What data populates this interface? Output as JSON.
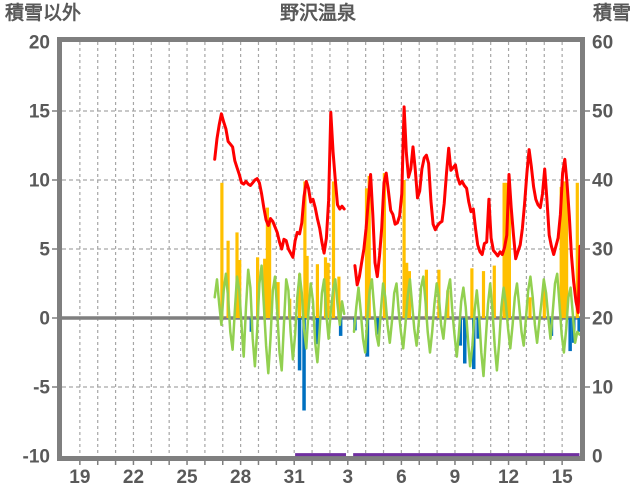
{
  "header": {
    "left_axis_label": "積雪以外",
    "title": "野沢温泉",
    "right_axis_label": "積雪"
  },
  "colors": {
    "red": "#FF0000",
    "green": "#92D050",
    "orange": "#FFC000",
    "blue": "#0070C0",
    "purple": "#7030A0",
    "frame": "#7F7F7F",
    "grid": "#A6A6A6",
    "text": "#595959"
  },
  "chart_data": {
    "type": "line",
    "title": "野沢温泉",
    "grid": true,
    "x_axis": {
      "unit": "day",
      "range_days": 29,
      "gridline_every": 1,
      "tick_positions": [
        1,
        4,
        7,
        10,
        13,
        16,
        19,
        22,
        25,
        28
      ],
      "tick_labels": [
        "19",
        "22",
        "25",
        "28",
        "31",
        "3",
        "6",
        "9",
        "12",
        "15"
      ]
    },
    "left_axis": {
      "label": "積雪以外",
      "min": -10,
      "max": 20,
      "ticks": [
        20,
        15,
        10,
        5,
        0,
        -5,
        -10
      ]
    },
    "right_axis": {
      "label": "積雪",
      "min": 0,
      "max": 60,
      "ticks": [
        60,
        50,
        40,
        30,
        20,
        10,
        0
      ]
    },
    "series": [
      {
        "name": "orange-bars",
        "kind": "bar",
        "color_key": "orange",
        "bar_width": 3.2,
        "points": [
          [
            8.95,
            9.8
          ],
          [
            9.3,
            5.6
          ],
          [
            9.8,
            6.2
          ],
          [
            9.95,
            4.2
          ],
          [
            10.95,
            4.4
          ],
          [
            11.35,
            4.3
          ],
          [
            11.5,
            8.0
          ],
          [
            11.62,
            7.2
          ],
          [
            12.1,
            2.6
          ],
          [
            12.75,
            1.4
          ],
          [
            13.3,
            3.2
          ],
          [
            13.6,
            9.9
          ],
          [
            13.72,
            4.5
          ],
          [
            14.3,
            3.9
          ],
          [
            14.75,
            4.4
          ],
          [
            14.9,
            4.0
          ],
          [
            15.2,
            9.9
          ],
          [
            15.5,
            3.0
          ],
          [
            17.05,
            9.4
          ],
          [
            17.2,
            10.3
          ],
          [
            18.05,
            10.5
          ],
          [
            19.15,
            10.0
          ],
          [
            19.3,
            4.0
          ],
          [
            19.45,
            3.4
          ],
          [
            20.4,
            3.5
          ],
          [
            21.1,
            3.5
          ],
          [
            21.6,
            2.0
          ],
          [
            22.95,
            3.6
          ],
          [
            23.6,
            3.4
          ],
          [
            24.2,
            3.8
          ],
          [
            24.75,
            9.8
          ],
          [
            24.9,
            9.8
          ],
          [
            25.05,
            9.8
          ],
          [
            26.2,
            1.5
          ],
          [
            27.0,
            2.3
          ],
          [
            27.95,
            9.5
          ],
          [
            28.1,
            9.9
          ],
          [
            28.25,
            9.7
          ],
          [
            28.85,
            9.8
          ]
        ]
      },
      {
        "name": "blue-bars",
        "kind": "bar",
        "color_key": "blue",
        "bar_width": 3.5,
        "points": [
          [
            10.6,
            -1.0
          ],
          [
            13.3,
            -3.8
          ],
          [
            13.55,
            -6.7
          ],
          [
            14.3,
            -1.9
          ],
          [
            15.6,
            -1.3
          ],
          [
            16.4,
            -0.9
          ],
          [
            17.1,
            -2.8
          ],
          [
            17.65,
            -1.2
          ],
          [
            22.3,
            -2.0
          ],
          [
            22.55,
            -3.3
          ],
          [
            23.05,
            -3.7
          ],
          [
            23.3,
            -1.5
          ],
          [
            27.4,
            -1.3
          ],
          [
            28.45,
            -2.4
          ],
          [
            28.65,
            -1.8
          ],
          [
            28.95,
            -1.0
          ]
        ]
      },
      {
        "name": "green-line",
        "kind": "line",
        "color_key": "green",
        "stroke_width": 2.5,
        "segments": [
          {
            "start": 8.55,
            "step": 0.125,
            "values": [
              1.5,
              2.8,
              1.0,
              -0.5,
              2.0,
              3.2,
              1.5,
              -1.0,
              -2.3,
              0.5,
              3.0,
              2.0,
              -0.5,
              -2.8,
              0.8,
              3.5,
              2.2,
              -1.5,
              -3.5,
              -1.0,
              2.5,
              3.8,
              1.0,
              -2.0,
              -4.0,
              -1.5,
              2.0,
              3.0,
              0.5,
              -2.5,
              -3.8,
              -0.5,
              2.8,
              2.0,
              -1.0,
              -3.0,
              -1.2,
              1.5,
              3.2,
              1.8,
              -0.8,
              -2.2,
              0.5,
              2.5,
              1.2,
              -1.8,
              -3.2,
              -0.8,
              1.8,
              2.8,
              0.2,
              -1.5,
              0.5,
              2.0,
              2.8,
              1.0,
              -0.5,
              1.2,
              0.3
            ]
          },
          {
            "start": 16.35,
            "step": 0.125,
            "values": [
              -1.0,
              0.8,
              2.2,
              0.5,
              -1.5,
              -2.5,
              0.0,
              2.0,
              2.8,
              0.8,
              -1.2,
              -2.0,
              0.5,
              2.5,
              1.5,
              -0.5,
              -1.8,
              -0.2,
              1.8,
              2.5,
              0.5,
              -1.0,
              -2.2,
              -0.5,
              1.5,
              2.8,
              1.0,
              -0.8,
              -2.0,
              -0.3,
              2.2,
              3.0,
              1.2,
              -1.0,
              -2.5,
              -1.0,
              1.0,
              2.5,
              1.5,
              -0.5,
              -1.5,
              0.2,
              2.0,
              2.8,
              0.5,
              -1.2,
              -2.8,
              -1.0,
              1.2,
              2.2,
              0.8,
              -1.5,
              -3.5,
              -2.0,
              0.5,
              2.0,
              0.2,
              -2.5,
              -4.2,
              -1.5,
              1.0,
              2.5,
              0.5,
              -2.0,
              -3.8,
              -1.8,
              0.8,
              2.2,
              1.0,
              -0.8,
              -2.2,
              -0.5,
              1.5,
              2.5,
              0.8,
              -1.0,
              -2.0,
              0.0,
              2.0,
              3.0,
              1.5,
              -0.5,
              -1.8,
              -0.2,
              1.2,
              2.8,
              1.8,
              0.0,
              -1.5,
              0.5,
              2.5,
              3.2,
              1.0,
              -1.2,
              -2.5,
              -0.8,
              1.5,
              2.2,
              0.2,
              -1.8,
              -1.0,
              -1.2
            ]
          }
        ]
      },
      {
        "name": "red-line",
        "kind": "line",
        "color_key": "red",
        "stroke_width": 3,
        "segments": [
          {
            "start": 8.55,
            "step": 0.125,
            "values": [
              11.5,
              13.0,
              14.0,
              14.8,
              14.2,
              13.7,
              12.8,
              12.6,
              12.4,
              11.4,
              10.9,
              10.4,
              9.8,
              9.7,
              9.9,
              9.7,
              9.6,
              9.8,
              10.0,
              10.1,
              9.8,
              9.0,
              8.0,
              7.1,
              6.7,
              7.2,
              7.0,
              6.6,
              6.2,
              5.5,
              5.0,
              5.7,
              5.6,
              5.0,
              4.7,
              4.4,
              5.6,
              6.2,
              6.1,
              6.9,
              8.8,
              9.9,
              9.4,
              8.4,
              8.6,
              8.0,
              7.2,
              6.5,
              5.5,
              4.7,
              5.8,
              8.5,
              14.9,
              12.0,
              10.0,
              8.2,
              7.9,
              8.1,
              7.9
            ]
          },
          {
            "start": 16.4,
            "step": 0.125,
            "values": [
              3.8,
              2.4,
              3.0,
              4.0,
              5.0,
              6.5,
              8.5,
              10.4,
              7.5,
              4.0,
              3.0,
              4.5,
              6.5,
              9.8,
              10.5,
              9.2,
              7.8,
              7.5,
              6.8,
              6.9,
              7.4,
              9.0,
              15.3,
              12.0,
              10.2,
              10.8,
              12.4,
              10.8,
              8.7,
              9.2,
              10.8,
              11.6,
              11.8,
              11.2,
              8.5,
              6.8,
              6.4,
              6.7,
              6.9,
              7.0,
              8.3,
              10.5,
              12.3,
              10.7,
              10.9,
              11.1,
              10.2,
              9.7,
              9.9,
              9.6,
              9.4,
              8.4,
              7.7,
              7.9,
              6.5,
              5.3,
              4.8,
              4.6,
              5.4,
              5.5,
              8.6,
              5.8,
              4.9,
              4.7,
              4.5,
              4.8,
              4.6,
              5.1,
              6.0,
              10.4,
              8.0,
              6.0,
              4.3,
              4.8,
              5.3,
              6.5,
              8.3,
              10.5,
              12.2,
              11.0,
              9.5,
              8.6,
              8.2,
              8.0,
              9.0,
              10.8,
              8.5,
              6.0,
              5.2,
              4.6,
              5.2,
              5.8,
              7.5,
              10.5,
              11.5,
              9.8,
              7.4,
              4.5,
              2.6,
              1.2,
              0.4,
              5.2
            ]
          }
        ]
      },
      {
        "name": "purple-line",
        "kind": "hline",
        "color_key": "purple",
        "stroke_width": 3,
        "value": -9.9,
        "segments": [
          [
            13.05,
            15.9
          ],
          [
            16.3,
            28.97
          ]
        ]
      }
    ]
  }
}
